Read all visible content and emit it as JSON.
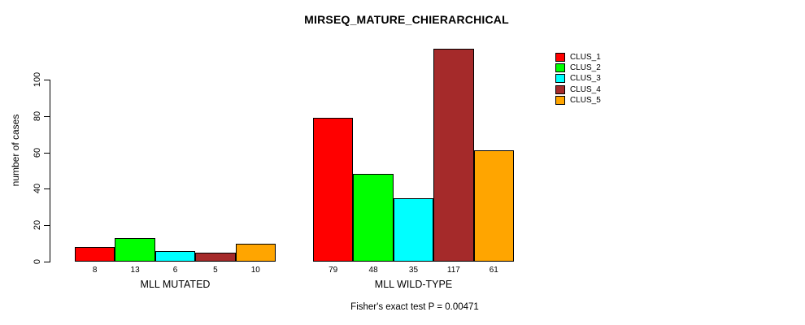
{
  "chart_data": {
    "type": "bar",
    "title": "MIRSEQ_MATURE_CHIERARCHICAL",
    "ylabel": "number of cases",
    "xlabel": "",
    "caption": "Fisher's exact test P = 0.00471",
    "categories": [
      "MLL MUTATED",
      "MLL WILD-TYPE"
    ],
    "series": [
      {
        "name": "CLUS_1",
        "color": "#FF0000",
        "values": [
          8,
          79
        ]
      },
      {
        "name": "CLUS_2",
        "color": "#00FF00",
        "values": [
          13,
          48
        ]
      },
      {
        "name": "CLUS_3",
        "color": "#00FFFF",
        "values": [
          6,
          35
        ]
      },
      {
        "name": "CLUS_4",
        "color": "#A52A2A",
        "values": [
          5,
          117
        ]
      },
      {
        "name": "CLUS_5",
        "color": "#FFA500",
        "values": [
          10,
          61
        ]
      }
    ],
    "bar_value_labels": [
      [
        8,
        13,
        6,
        5,
        10
      ],
      [
        79,
        48,
        35,
        117,
        61
      ]
    ],
    "yticks": [
      0,
      20,
      40,
      60,
      80,
      100
    ],
    "ylim": [
      0,
      100
    ],
    "grid": false,
    "legend_position": "top-right",
    "axis_color": "#000000",
    "background_color": "#FFFFFF"
  }
}
